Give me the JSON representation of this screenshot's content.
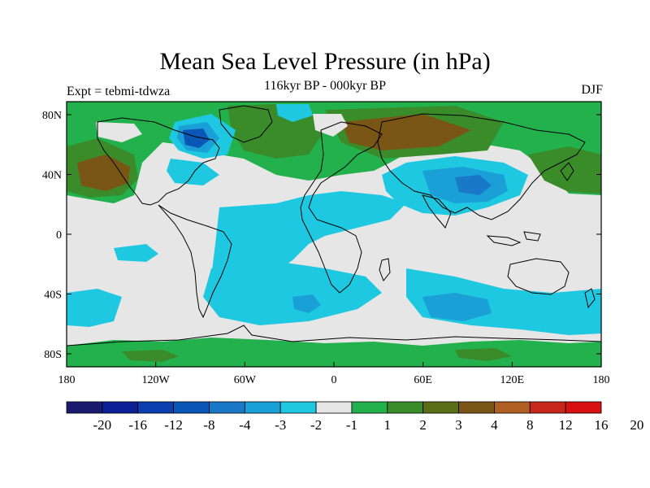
{
  "header": {
    "title": "Mean Sea Level Pressure (in hPa)",
    "subtitle": "116kyr BP - 000kyr BP",
    "left_label": "Expt = tebmi-tdwza",
    "right_label": "DJF"
  },
  "axes": {
    "lat_ticks": [
      "80N",
      "40N",
      "0",
      "40S",
      "80S"
    ],
    "lon_ticks": [
      "180",
      "120W",
      "60W",
      "0",
      "60E",
      "120E",
      "180"
    ]
  },
  "colorbar": {
    "labels": [
      "-20",
      "-16",
      "-12",
      "-8",
      "-4",
      "-3",
      "-2",
      "-1",
      "1",
      "2",
      "3",
      "4",
      "8",
      "12",
      "16",
      "20"
    ],
    "colors": [
      "#1a1a6e",
      "#0c1f96",
      "#0b3fb0",
      "#0a57b8",
      "#1a78c8",
      "#1aa0d6",
      "#1ec8e0",
      "#e6e6e6",
      "#22b14c",
      "#3a8c2a",
      "#5a6e18",
      "#7a5616",
      "#b06024",
      "#c8281a",
      "#d81010"
    ]
  },
  "legend_colors": {
    "ocean_neutral": "#e6e6e6",
    "negative_light": "#1ec8e0",
    "negative_mid": "#1aa0d6",
    "negative_dark": "#1a78c8",
    "positive_light": "#22b14c",
    "positive_mid": "#3a8c2a",
    "positive_brown": "#7a5616"
  }
}
